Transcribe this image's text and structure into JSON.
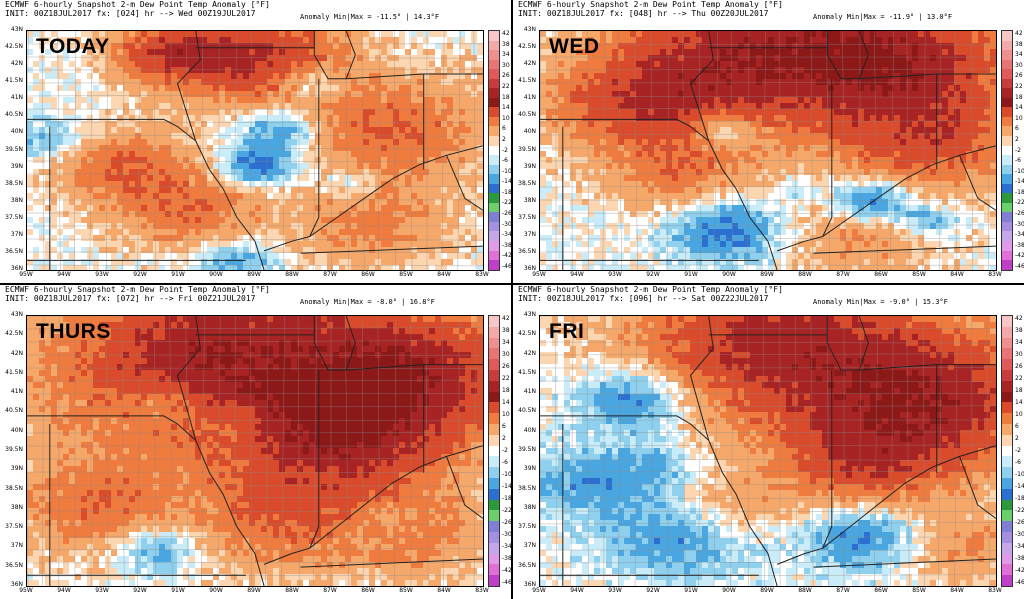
{
  "panels": [
    {
      "id": "p1",
      "title": "ECMWF 6-hourly Snapshot 2-m Dew Point Temp Anomaly [°F]",
      "init": "INIT: 00Z18JUL2017 fx: [024] hr --> Wed 00Z19JUL2017",
      "anomaly": "Anomaly Min|Max = -11.5° | 14.3°F",
      "day_label": "TODAY"
    },
    {
      "id": "p2",
      "title": "ECMWF 6-hourly Snapshot 2-m Dew Point Temp Anomaly [°F]",
      "init": "INIT: 00Z18JUL2017 fx: [048] hr --> Thu 00Z20JUL2017",
      "anomaly": "Anomaly Min|Max = -11.9° | 13.0°F",
      "day_label": "WED"
    },
    {
      "id": "p3",
      "title": "ECMWF 6-hourly Snapshot 2-m Dew Point Temp Anomaly [°F]",
      "init": "INIT: 00Z18JUL2017 fx: [072] hr --> Fri 00Z21JUL2017",
      "anomaly": "Anomaly Min|Max = -8.0° | 16.8°F",
      "day_label": "THURS"
    },
    {
      "id": "p4",
      "title": "ECMWF 6-hourly Snapshot 2-m Dew Point Temp Anomaly [°F]",
      "init": "INIT: 00Z18JUL2017 fx: [096] hr --> Sat 00Z22JUL2017",
      "anomaly": "Anomaly Min|Max = -9.0° | 15.3°F",
      "day_label": "FRI"
    }
  ],
  "lat_labels": [
    "43N",
    "42.5N",
    "42N",
    "41.5N",
    "41N",
    "40.5N",
    "40N",
    "39.5N",
    "39N",
    "38.5N",
    "38N",
    "37.5N",
    "37N",
    "36.5N",
    "36N"
  ],
  "lon_labels": [
    "95W",
    "94W",
    "93W",
    "92W",
    "91W",
    "90W",
    "89W",
    "88W",
    "87W",
    "86W",
    "85W",
    "84W",
    "83W"
  ],
  "colorbar": {
    "labels": [
      "42",
      "38",
      "34",
      "30",
      "26",
      "22",
      "18",
      "14",
      "10",
      "6",
      "2",
      "-2",
      "-6",
      "-10",
      "-14",
      "-18",
      "-22",
      "-26",
      "-30",
      "-34",
      "-38",
      "-42",
      "-46"
    ],
    "colors": [
      "#f7c6c6",
      "#f4a9a9",
      "#ef8f8f",
      "#e87474",
      "#e05a5a",
      "#c83c3c",
      "#a82424",
      "#8c1818",
      "#d94b2a",
      "#ef7b3e",
      "#f6a86a",
      "#fbd6b0",
      "#ffffff",
      "#c9ecf8",
      "#8fd0ee",
      "#4aa6e0",
      "#2b6fd0",
      "#2a9a3c",
      "#6bd06a",
      "#7f7fd6",
      "#a58fe0",
      "#c4a6ea",
      "#e09ae8",
      "#e06fd8",
      "#c03fc8"
    ]
  }
}
